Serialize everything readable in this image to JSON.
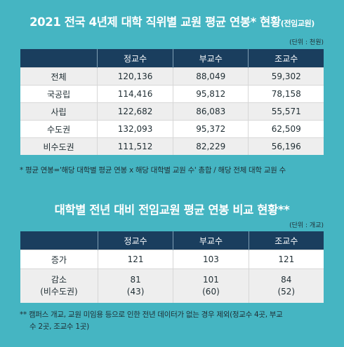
{
  "section1": {
    "title": "2021 전국 4년제 대학 직위별 교원 평균 연봉* 현황",
    "title_suffix": "(전임교원)",
    "unit": "(단위 : 천원)",
    "headers": [
      "",
      "정교수",
      "부교수",
      "조교수"
    ],
    "rows": [
      {
        "label": "전체",
        "values": [
          "120,136",
          "88,049",
          "59,302"
        ]
      },
      {
        "label": "국공립",
        "values": [
          "114,416",
          "95,812",
          "78,158"
        ]
      },
      {
        "label": "사립",
        "values": [
          "122,682",
          "86,083",
          "55,571"
        ]
      },
      {
        "label": "수도권",
        "values": [
          "132,093",
          "95,372",
          "62,509"
        ]
      },
      {
        "label": "비수도권",
        "values": [
          "111,512",
          "82,229",
          "56,196"
        ]
      }
    ],
    "footnote": "* 평균 연봉='해당 대학별 평균 연봉 x 해당 대학별 교원 수' 총합 / 해당 전체 대학 교원 수"
  },
  "section2": {
    "title": "대학별 전년 대비 전임교원 평균 연봉 비교 현황**",
    "unit": "(단위 : 개교)",
    "headers": [
      "",
      "정교수",
      "부교수",
      "조교수"
    ],
    "rows": [
      {
        "label": "증가",
        "values": [
          "121",
          "103",
          "121"
        ]
      },
      {
        "label": "감소",
        "sublabel": "(비수도권)",
        "values": [
          "81",
          "101",
          "84"
        ],
        "subvalues": [
          "(43)",
          "(60)",
          "(52)"
        ]
      }
    ],
    "footnote_line1": "** 캠퍼스 개교, 교원 미임용 등으로 인한 전년 데이터가 없는 경우 제외(정교수 4곳, 부교",
    "footnote_line2": "수 2곳, 조교수 1곳)"
  }
}
